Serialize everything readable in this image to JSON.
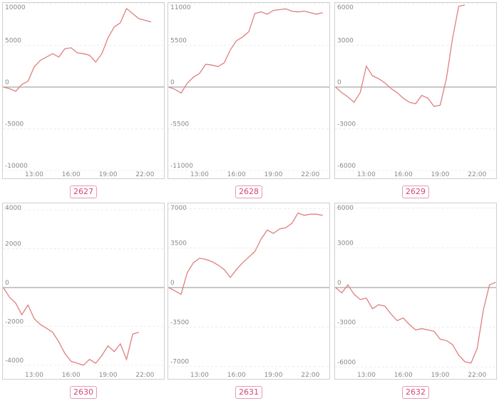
{
  "chart_data": [
    {
      "type": "line",
      "title": "2627",
      "color": "#e07f7f",
      "x": [
        10.5,
        11,
        11.5,
        12,
        12.5,
        13,
        13.5,
        14,
        14.5,
        15,
        15.5,
        16,
        16.5,
        17,
        17.5,
        18,
        18.5,
        19,
        19.5,
        20,
        20.5,
        21,
        21.5,
        22,
        22.5
      ],
      "values": [
        0,
        -200,
        -500,
        300,
        700,
        2400,
        3200,
        3600,
        4000,
        3600,
        4600,
        4700,
        4100,
        4000,
        3800,
        3000,
        4000,
        5900,
        7200,
        7700,
        9400,
        8800,
        8200,
        8000,
        7800
      ],
      "xlim": [
        10.4,
        23.6
      ],
      "xticks": [
        {
          "value": 13,
          "label": "13:00"
        },
        {
          "value": 16,
          "label": "16:00"
        },
        {
          "value": 19,
          "label": "19:00"
        },
        {
          "value": 22,
          "label": "22:00"
        }
      ],
      "ylim": [
        -10000,
        10000
      ],
      "yticks": [
        10000,
        5000,
        0,
        -5000,
        -10000
      ]
    },
    {
      "type": "line",
      "title": "2628",
      "color": "#e07f7f",
      "x": [
        10.5,
        11,
        11.5,
        12,
        12.5,
        13,
        13.5,
        14,
        14.5,
        15,
        15.5,
        16,
        16.5,
        17,
        17.5,
        18,
        18.5,
        19,
        19.5,
        20,
        20.5,
        21,
        21.5,
        22,
        22.5,
        23
      ],
      "values": [
        0,
        -300,
        -800,
        500,
        1300,
        1800,
        3000,
        2900,
        2700,
        3200,
        4900,
        6100,
        6600,
        7300,
        9700,
        9900,
        9600,
        10100,
        10200,
        10300,
        10000,
        9900,
        10000,
        9800,
        9600,
        9800
      ],
      "xlim": [
        10.4,
        23.6
      ],
      "xticks": [
        {
          "value": 13,
          "label": "13:00"
        },
        {
          "value": 16,
          "label": "16:00"
        },
        {
          "value": 19,
          "label": "19:00"
        },
        {
          "value": 22,
          "label": "22:00"
        }
      ],
      "ylim": [
        -11000,
        11000
      ],
      "yticks": [
        11000,
        5500,
        0,
        -5500,
        -11000
      ]
    },
    {
      "type": "line",
      "title": "2629",
      "color": "#e07f7f",
      "x": [
        10.5,
        11,
        11.5,
        12,
        12.5,
        13,
        13.5,
        14,
        14.5,
        15,
        15.5,
        16,
        16.5,
        17,
        17.5,
        18,
        18.5,
        19,
        19.5,
        20,
        20.5,
        21
      ],
      "values": [
        0,
        -400,
        -700,
        -1100,
        -400,
        1500,
        800,
        600,
        300,
        -100,
        -400,
        -800,
        -1100,
        -1200,
        -600,
        -800,
        -1400,
        -1300,
        600,
        3500,
        5800,
        5900
      ],
      "xlim": [
        10.4,
        23.6
      ],
      "xticks": [
        {
          "value": 13,
          "label": "13:00"
        },
        {
          "value": 16,
          "label": "16:00"
        },
        {
          "value": 19,
          "label": "19:00"
        },
        {
          "value": 22,
          "label": "22:00"
        }
      ],
      "ylim": [
        -6000,
        6000
      ],
      "yticks": [
        6000,
        3000,
        0,
        -3000,
        -6000
      ]
    },
    {
      "type": "line",
      "title": "2630",
      "color": "#e07f7f",
      "x": [
        10.5,
        11,
        11.5,
        12,
        12.5,
        13,
        13.5,
        14,
        14.5,
        15,
        15.5,
        16,
        16.5,
        17,
        17.5,
        18,
        18.5,
        19,
        19.5,
        20,
        20.5,
        21,
        21.5
      ],
      "values": [
        0,
        -500,
        -800,
        -1400,
        -900,
        -1600,
        -1900,
        -2100,
        -2300,
        -2800,
        -3400,
        -3800,
        -3900,
        -4000,
        -3700,
        -3900,
        -3500,
        -3000,
        -3300,
        -2900,
        -3700,
        -2400,
        -2300
      ],
      "xlim": [
        10.4,
        23.6
      ],
      "xticks": [
        {
          "value": 13,
          "label": "13:00"
        },
        {
          "value": 16,
          "label": "16:00"
        },
        {
          "value": 19,
          "label": "19:00"
        },
        {
          "value": 22,
          "label": "22:00"
        }
      ],
      "ylim": [
        -4300,
        4300
      ],
      "yticks": [
        4000,
        2000,
        0,
        -2000,
        -4000
      ]
    },
    {
      "type": "line",
      "title": "2631",
      "color": "#e07f7f",
      "x": [
        10.5,
        11,
        11.5,
        12,
        12.5,
        13,
        13.5,
        14,
        14.5,
        15,
        15.5,
        16,
        16.5,
        17,
        17.5,
        18,
        18.5,
        19,
        19.5,
        20,
        20.5,
        21,
        21.5,
        22,
        22.5,
        23
      ],
      "values": [
        0,
        -300,
        -600,
        1300,
        2200,
        2600,
        2500,
        2300,
        2000,
        1600,
        900,
        1600,
        2200,
        2700,
        3200,
        4300,
        5100,
        4800,
        5200,
        5300,
        5700,
        6600,
        6400,
        6500,
        6500,
        6400
      ],
      "xlim": [
        10.4,
        23.6
      ],
      "xticks": [
        {
          "value": 13,
          "label": "13:00"
        },
        {
          "value": 16,
          "label": "16:00"
        },
        {
          "value": 19,
          "label": "19:00"
        },
        {
          "value": 22,
          "label": "22:00"
        }
      ],
      "ylim": [
        -7400,
        7400
      ],
      "yticks": [
        7000,
        3500,
        0,
        -3500,
        -7000
      ]
    },
    {
      "type": "line",
      "title": "2632",
      "color": "#e07f7f",
      "x": [
        10.5,
        11,
        11.5,
        12,
        12.5,
        13,
        13.5,
        14,
        14.5,
        15,
        15.5,
        16,
        16.5,
        17,
        17.5,
        18,
        18.5,
        19,
        19.5,
        20,
        20.5,
        21,
        21.5,
        22,
        22.5,
        23,
        23.5
      ],
      "values": [
        0,
        -400,
        200,
        -500,
        -900,
        -800,
        -1600,
        -1300,
        -1400,
        -2000,
        -2500,
        -2300,
        -2800,
        -3200,
        -3100,
        -3200,
        -3300,
        -3900,
        -4000,
        -4300,
        -5100,
        -5600,
        -5700,
        -4600,
        -1700,
        200,
        400
      ],
      "xlim": [
        10.4,
        23.6
      ],
      "xticks": [
        {
          "value": 13,
          "label": "13:00"
        },
        {
          "value": 16,
          "label": "16:00"
        },
        {
          "value": 19,
          "label": "19:00"
        },
        {
          "value": 22,
          "label": "22:00"
        }
      ],
      "ylim": [
        -6300,
        6300
      ],
      "yticks": [
        6000,
        3000,
        0,
        -3000,
        -6000
      ]
    }
  ]
}
